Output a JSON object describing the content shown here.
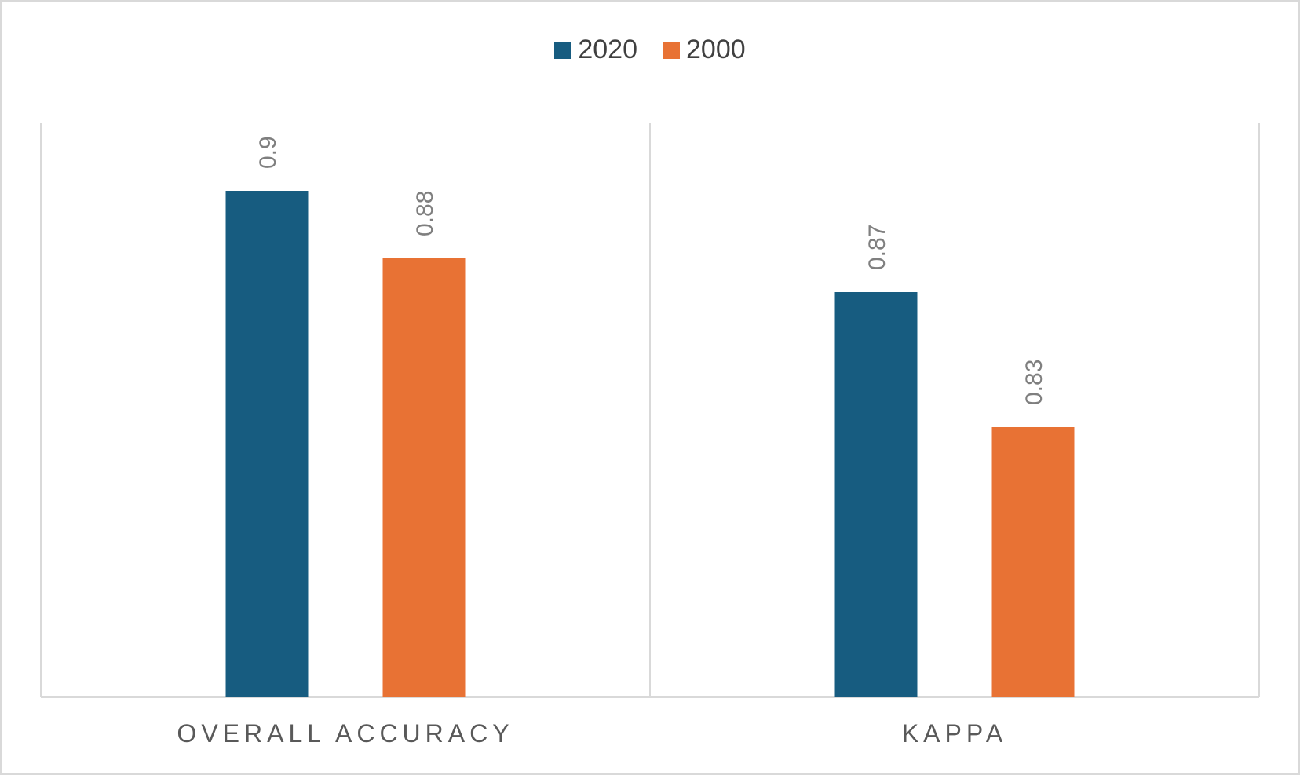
{
  "chart_data": {
    "type": "bar",
    "categories": [
      "OVERALL ACCURACY",
      "KAPPA"
    ],
    "series": [
      {
        "name": "2020",
        "values": [
          0.9,
          0.87
        ],
        "labels": [
          "0.9",
          "0.87"
        ],
        "color": "#175c80"
      },
      {
        "name": "2000",
        "values": [
          0.88,
          0.83
        ],
        "labels": [
          "0.88",
          "0.83"
        ],
        "color": "#e87234"
      }
    ],
    "title": "",
    "xlabel": "",
    "ylabel": "",
    "ylim": [
      0.75,
      0.92
    ],
    "legend": "top-center",
    "grid": false,
    "data_labels_rotated": true
  },
  "colors": {
    "axis_line": "#d9d9d9",
    "frame": "#d9d9d9"
  }
}
